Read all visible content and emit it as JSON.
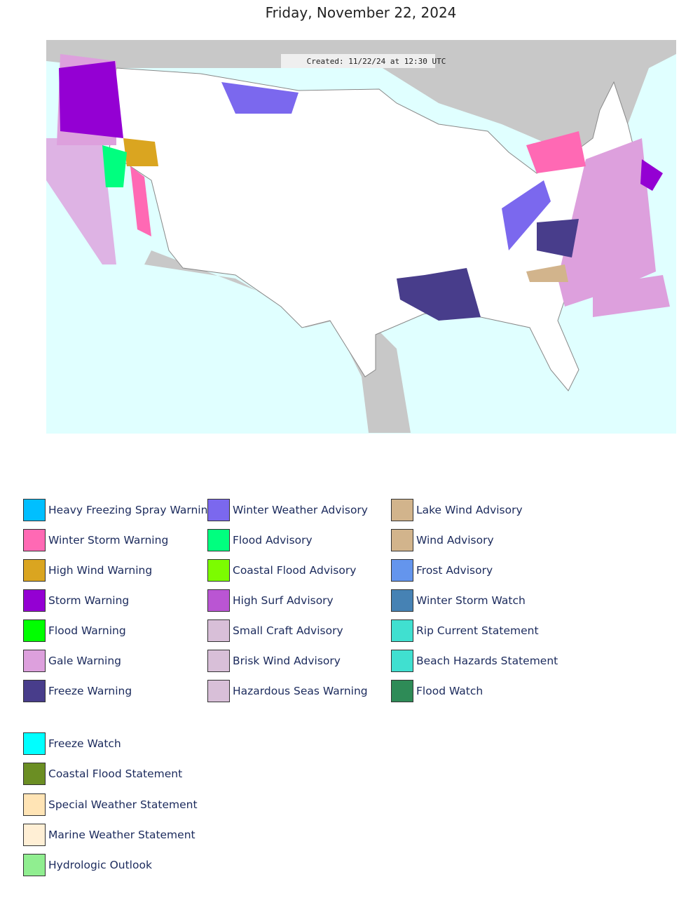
{
  "header": {
    "title": "Friday, November 22, 2024"
  },
  "map": {
    "created": "Created: 11/22/24 at 12:30 UTC"
  },
  "legend": {
    "columns": [
      [
        {
          "name": "Heavy Freezing Spray Warning",
          "color": "#00bfff"
        },
        {
          "name": "Winter Storm Warning",
          "color": "#ff69b4"
        },
        {
          "name": "High Wind Warning",
          "color": "#daa520"
        },
        {
          "name": "Storm Warning",
          "color": "#9400d3"
        },
        {
          "name": "Flood Warning",
          "color": "#00ff00"
        },
        {
          "name": "Gale Warning",
          "color": "#dda0dd"
        },
        {
          "name": "Freeze Warning",
          "color": "#483d8b"
        }
      ],
      [
        {
          "name": "Winter Weather Advisory",
          "color": "#7b68ee"
        },
        {
          "name": "Flood Advisory",
          "color": "#00ff7f"
        },
        {
          "name": "Coastal Flood Advisory",
          "color": "#7cfc00"
        },
        {
          "name": "High Surf Advisory",
          "color": "#ba55d3"
        },
        {
          "name": "Small Craft Advisory",
          "color": "#d8bfd8"
        },
        {
          "name": "Brisk Wind Advisory",
          "color": "#d8bfd8"
        },
        {
          "name": "Hazardous Seas Warning",
          "color": "#d8bfd8"
        }
      ],
      [
        {
          "name": "Lake Wind Advisory",
          "color": "#d2b48c"
        },
        {
          "name": "Wind Advisory",
          "color": "#d2b48c"
        },
        {
          "name": "Frost Advisory",
          "color": "#6495ed"
        },
        {
          "name": "Winter Storm Watch",
          "color": "#4682b4"
        },
        {
          "name": "Rip Current Statement",
          "color": "#40e0d0"
        },
        {
          "name": "Beach Hazards Statement",
          "color": "#40e0d0"
        },
        {
          "name": "Flood Watch",
          "color": "#2e8b57"
        }
      ]
    ],
    "extra": [
      {
        "name": "Freeze Watch",
        "color": "#00ffff"
      },
      {
        "name": "Coastal Flood Statement",
        "color": "#6b8e23"
      },
      {
        "name": "Special Weather Statement",
        "color": "#ffe4b5"
      },
      {
        "name": "Marine Weather Statement",
        "color": "#ffefd5"
      },
      {
        "name": "Hydrologic Outlook",
        "color": "#90ee90"
      }
    ]
  }
}
